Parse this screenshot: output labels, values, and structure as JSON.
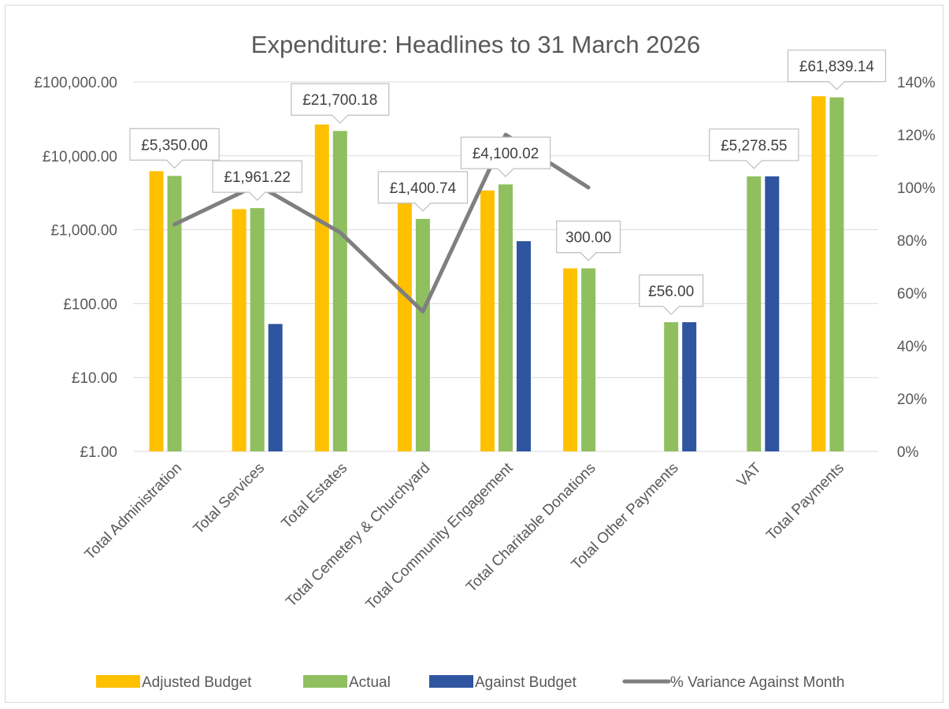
{
  "chart_data": {
    "type": "bar",
    "title": "Expenditure: Headlines to 31 March 2026",
    "categories": [
      "Total Administration",
      "Total Services",
      "Total Estates",
      "Total Cemetery & Churchyard",
      "Total Community Engagement",
      "Total Charitable Donations",
      "Total Other Payments",
      "VAT",
      "Total Payments"
    ],
    "y_axis": {
      "scale": "log",
      "ylim": [
        1,
        100000
      ],
      "tick_values": [
        1,
        10,
        100,
        1000,
        10000,
        100000
      ],
      "tick_labels": [
        "£1.00",
        "£10.00",
        "£100.00",
        "£1,000.00",
        "£10,000.00",
        "£100,000.00"
      ],
      "gridlines": true
    },
    "y2_axis": {
      "scale": "linear",
      "ylim": [
        0,
        140
      ],
      "tick_values": [
        0,
        20,
        40,
        60,
        80,
        100,
        120,
        140
      ],
      "tick_labels": [
        "0%",
        "20%",
        "40%",
        "60%",
        "80%",
        "100%",
        "120%",
        "140%"
      ]
    },
    "series": [
      {
        "name": "Adjusted Budget",
        "kind": "bar",
        "color": "#ffc000",
        "values": [
          6200,
          1900,
          26500,
          2650,
          3400,
          300,
          null,
          null,
          64000
        ]
      },
      {
        "name": "Actual",
        "kind": "bar",
        "color": "#8fbf5f",
        "values": [
          5350.0,
          1961.22,
          21700.18,
          1400.74,
          4100.02,
          300.0,
          56.0,
          5278.55,
          61839.14
        ]
      },
      {
        "name": "Against Budget",
        "kind": "bar",
        "color": "#2f55a0",
        "values": [
          null,
          53,
          null,
          null,
          700,
          null,
          56,
          5278,
          null
        ]
      },
      {
        "name": "% Variance Against Month",
        "kind": "line",
        "axis": "secondary",
        "color": "#7f7f7f",
        "values": [
          86,
          101,
          83,
          53,
          120,
          100,
          null,
          null,
          null
        ]
      }
    ],
    "data_labels": [
      "£5,350.00",
      "£1,961.22",
      "£21,700.18",
      "£1,400.74",
      "£4,100.02",
      "300.00",
      "£56.00",
      "£5,278.55",
      "£61,839.14"
    ],
    "legend": {
      "position": "bottom",
      "items": [
        "Adjusted Budget",
        "Actual",
        "Against Budget",
        "% Variance Against Month"
      ]
    }
  }
}
